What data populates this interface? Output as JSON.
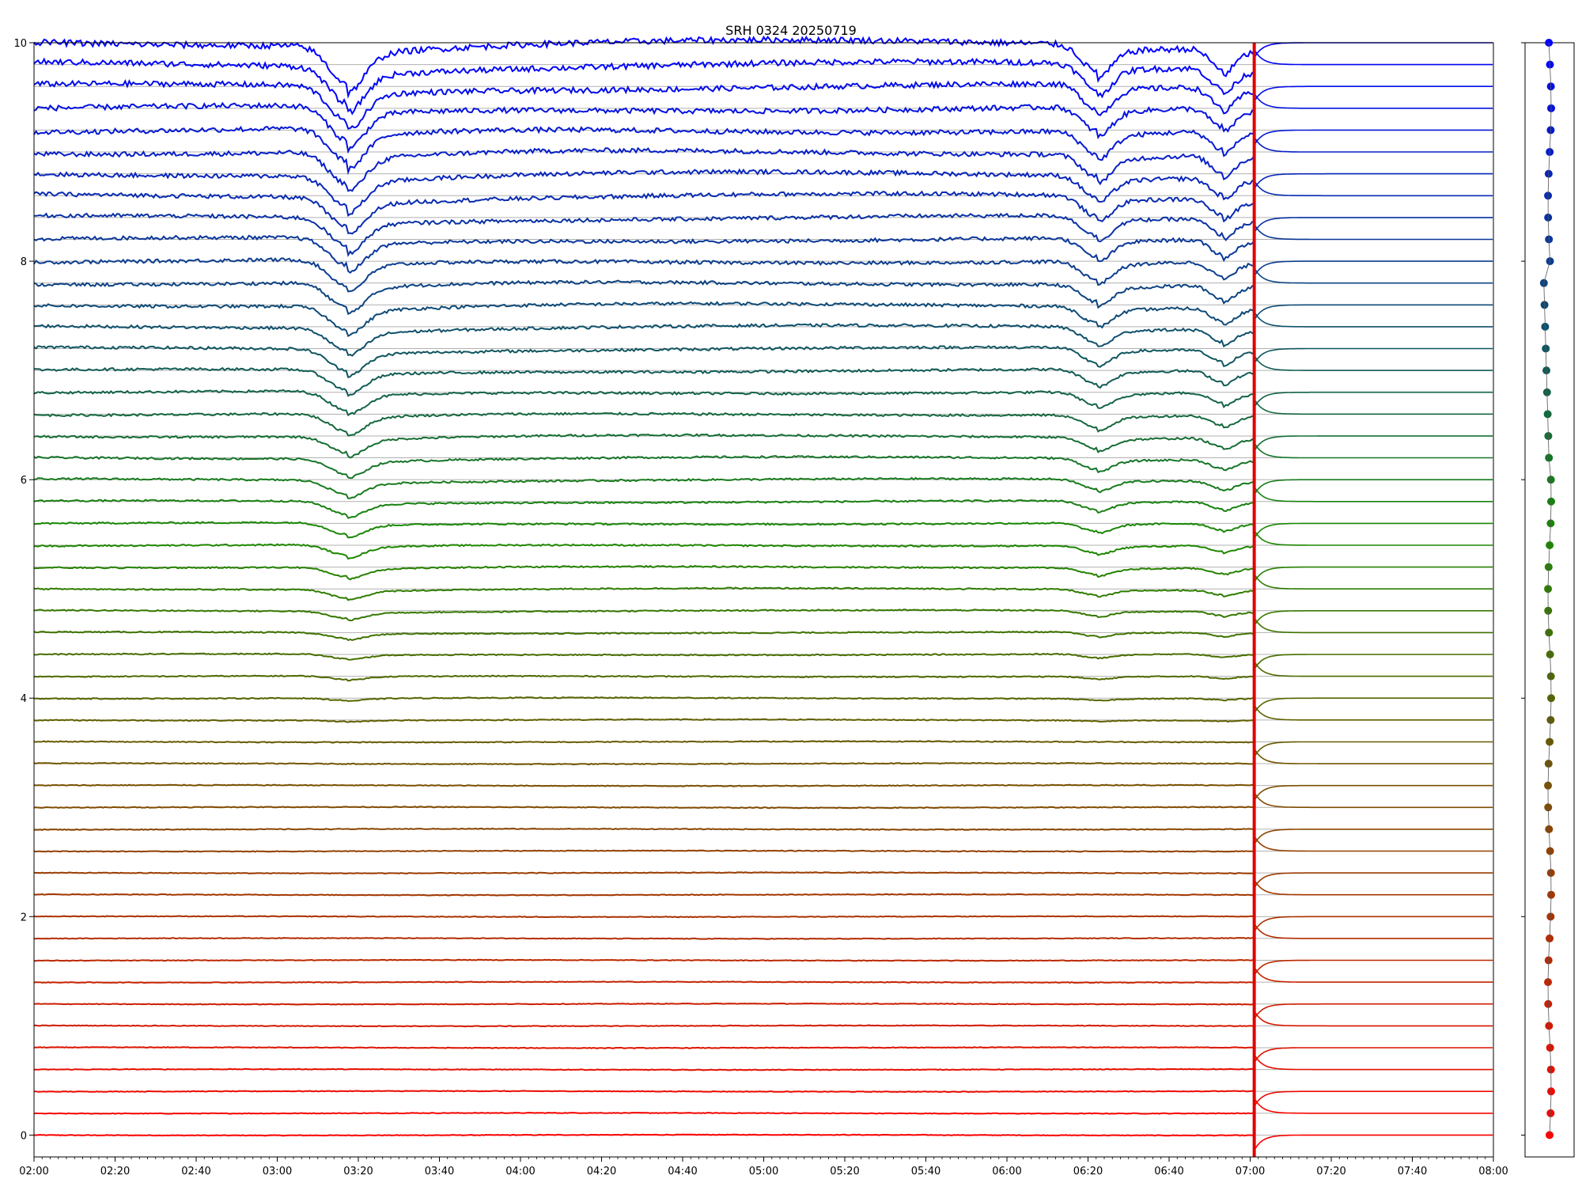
{
  "chart_data": {
    "type": "line",
    "title": "SRH 0324 20250719",
    "xlabel": "",
    "ylabel": "",
    "xlim": [
      "02:00",
      "08:00"
    ],
    "ylim": [
      -0.2,
      10
    ],
    "x_ticks": [
      "02:00",
      "02:20",
      "02:40",
      "03:00",
      "03:20",
      "03:40",
      "04:00",
      "04:20",
      "04:40",
      "05:00",
      "05:20",
      "05:40",
      "06:00",
      "06:20",
      "06:40",
      "07:00",
      "07:20",
      "07:40",
      "08:00"
    ],
    "y_ticks": [
      "0",
      "2",
      "4",
      "6",
      "8",
      "10"
    ],
    "grid": "horizontal at each channel baseline",
    "legend": "none",
    "marker_time": "07:01",
    "marker_color": "#e00000",
    "channel_count": 51,
    "channel_spacing": 0.2,
    "first_baseline": 0,
    "color_low": "#ff0000",
    "color_mid": "#1a8a00",
    "color_high": "#0000ff",
    "features": [
      {
        "time": "03:17",
        "depth": 0.35,
        "width_min": 6
      },
      {
        "time": "06:22",
        "depth": 0.25,
        "width_min": 5
      },
      {
        "time": "06:53",
        "depth": 0.2,
        "width_min": 4
      }
    ],
    "dip_start_channel": 18,
    "side_panel": {
      "type": "scatter",
      "description_points": "one marker per channel at its baseline, x offset per channel"
    }
  }
}
